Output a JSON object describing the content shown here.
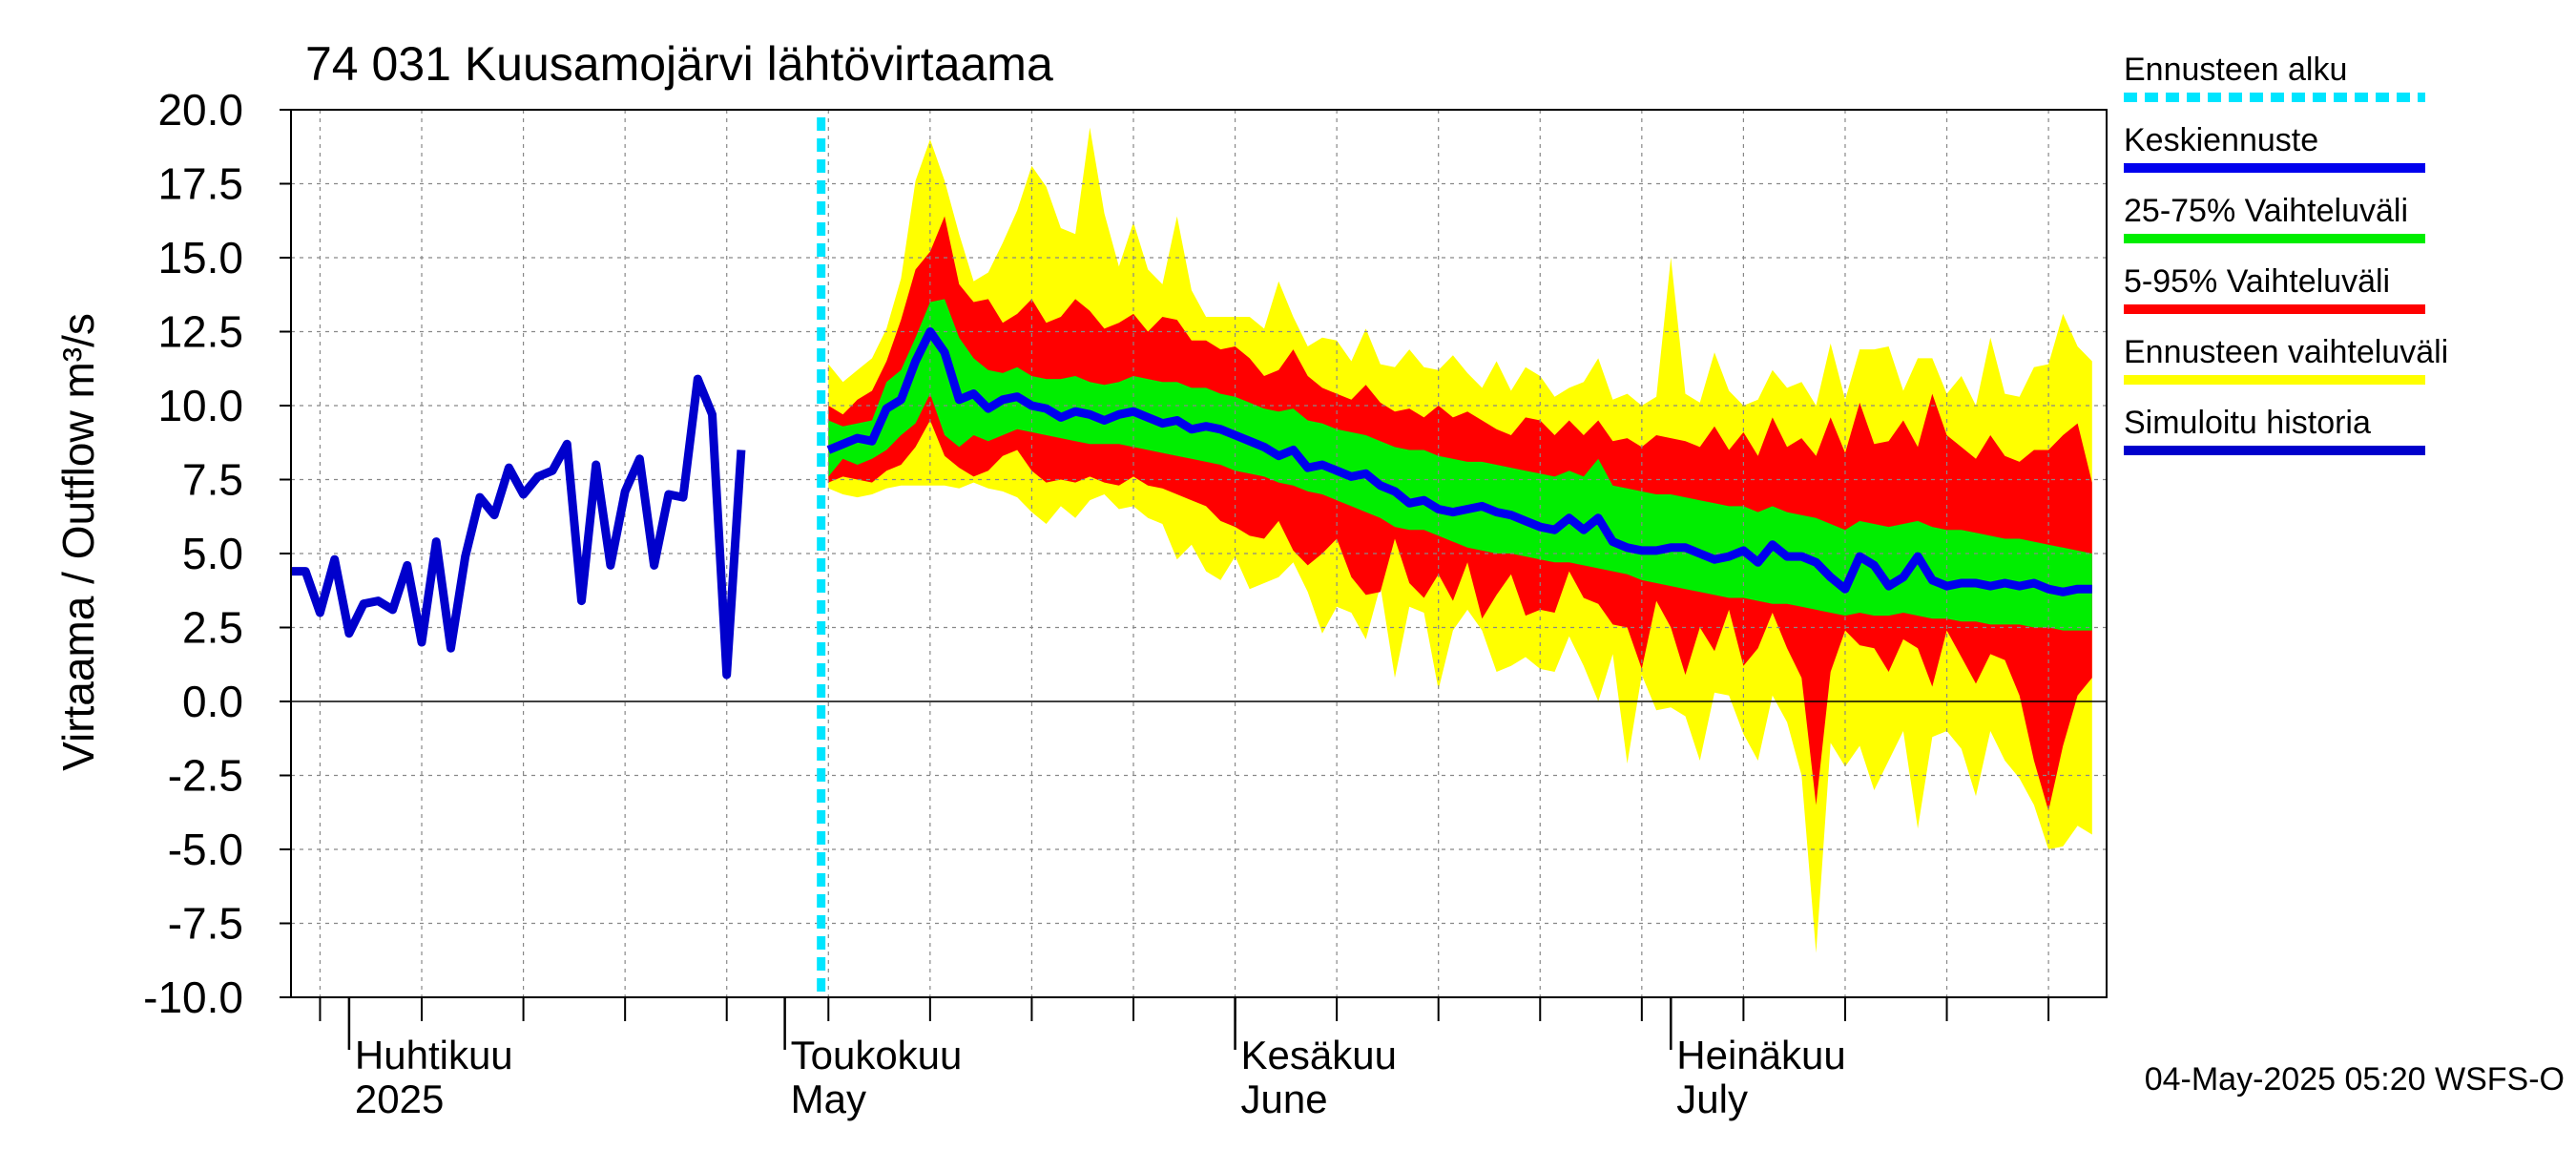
{
  "chart_data": {
    "type": "area",
    "title": "74 031 Kuusamojärvi lähtövirtaama",
    "ylabel": "Virtaama / Outflow    m³/s",
    "ylim": [
      -10,
      20
    ],
    "yticks": [
      "20.0",
      "17.5",
      "15.0",
      "12.5",
      "10.0",
      "7.5",
      "5.0",
      "2.5",
      "0.0",
      "-2.5",
      "-5.0",
      "-7.5",
      "-10.0"
    ],
    "xlim": [
      "2025-03-28",
      "2025-07-31"
    ],
    "x_month_labels": [
      {
        "date": "2025-04-01",
        "line1": "Huhtikuu",
        "line2": "2025"
      },
      {
        "date": "2025-05-01",
        "line1": "Toukokuu",
        "line2": "May"
      },
      {
        "date": "2025-06-01",
        "line1": "Kesäkuu",
        "line2": "June"
      },
      {
        "date": "2025-07-01",
        "line1": "Heinäkuu",
        "line2": "July"
      }
    ],
    "forecast_start": "2025-05-04",
    "footer": "04-May-2025 05:20 WSFS-O",
    "legend": [
      {
        "label": "Ennusteen alku",
        "color": "#00e5ff",
        "style": "dotted"
      },
      {
        "label": "Keskiennuste",
        "color": "#0000ee",
        "style": "solid"
      },
      {
        "label": "25-75% Vaihteluväli",
        "color": "#00ee00",
        "style": "solid"
      },
      {
        "label": "5-95% Vaihteluväli",
        "color": "#ff0000",
        "style": "solid"
      },
      {
        "label": "Ennusteen vaihteluväli",
        "color": "#ffff00",
        "style": "solid"
      },
      {
        "label": "Simuloitu historia",
        "color": "#0000cc",
        "style": "solid"
      }
    ],
    "colors": {
      "yellow": "#ffff00",
      "red": "#ff0000",
      "green": "#00ee00",
      "blue": "#0000ee",
      "cyan": "#00e5ff"
    },
    "history": {
      "start": "2025-03-28",
      "values": [
        4.4,
        4.4,
        3.0,
        4.8,
        2.3,
        3.3,
        3.4,
        3.1,
        4.6,
        2.0,
        5.4,
        1.8,
        4.9,
        6.9,
        6.3,
        7.9,
        7.0,
        7.6,
        7.8,
        8.7,
        3.4,
        8.0,
        4.6,
        7.1,
        8.2,
        4.6,
        7.0,
        6.9,
        10.9,
        9.7,
        0.9,
        8.5
      ]
    },
    "forecast": {
      "start": "2025-05-04",
      "median": [
        8.5,
        8.7,
        8.9,
        8.8,
        9.9,
        10.2,
        11.5,
        12.5,
        11.8,
        10.2,
        10.4,
        9.9,
        10.2,
        10.3,
        10.0,
        9.9,
        9.6,
        9.8,
        9.7,
        9.5,
        9.7,
        9.8,
        9.6,
        9.4,
        9.5,
        9.2,
        9.3,
        9.2,
        9.0,
        8.8,
        8.6,
        8.3,
        8.5,
        7.9,
        8.0,
        7.8,
        7.6,
        7.7,
        7.3,
        7.1,
        6.7,
        6.8,
        6.5,
        6.4,
        6.5,
        6.6,
        6.4,
        6.3,
        6.1,
        5.9,
        5.8,
        6.2,
        5.8,
        6.2,
        5.4,
        5.2,
        5.1,
        5.1,
        5.2,
        5.2,
        5.0,
        4.8,
        4.9,
        5.1,
        4.7,
        5.3,
        4.9,
        4.9,
        4.7,
        4.2,
        3.8,
        4.9,
        4.6,
        3.9,
        4.2,
        4.9,
        4.1,
        3.9,
        4.0,
        4.0,
        3.9,
        4.0,
        3.9,
        4.0,
        3.8,
        3.7,
        3.8,
        3.8
      ],
      "p25": [
        7.6,
        8.2,
        8.0,
        8.2,
        8.5,
        9.0,
        9.4,
        10.4,
        9.0,
        8.6,
        9.0,
        8.8,
        9.0,
        9.2,
        9.1,
        9.0,
        8.9,
        8.8,
        8.7,
        8.7,
        8.7,
        8.6,
        8.5,
        8.4,
        8.3,
        8.2,
        8.1,
        8.0,
        7.8,
        7.7,
        7.6,
        7.4,
        7.3,
        7.1,
        7.0,
        6.8,
        6.6,
        6.4,
        6.2,
        5.9,
        5.8,
        5.8,
        5.6,
        5.4,
        5.2,
        5.1,
        5.0,
        5.0,
        4.9,
        4.8,
        4.7,
        4.7,
        4.6,
        4.5,
        4.4,
        4.3,
        4.1,
        4.0,
        3.9,
        3.8,
        3.7,
        3.6,
        3.5,
        3.5,
        3.4,
        3.3,
        3.3,
        3.2,
        3.1,
        3.0,
        2.9,
        3.0,
        2.9,
        2.9,
        3.0,
        2.9,
        2.8,
        2.8,
        2.7,
        2.7,
        2.6,
        2.6,
        2.6,
        2.5,
        2.5,
        2.4,
        2.4,
        2.4
      ],
      "p75": [
        9.5,
        9.3,
        9.4,
        9.5,
        10.8,
        11.2,
        12.3,
        13.5,
        13.6,
        12.3,
        11.6,
        11.2,
        11.1,
        11.3,
        11.0,
        10.9,
        10.9,
        11.0,
        10.8,
        10.7,
        10.8,
        11.0,
        10.9,
        10.8,
        10.8,
        10.6,
        10.6,
        10.4,
        10.3,
        10.1,
        9.9,
        9.8,
        9.9,
        9.5,
        9.4,
        9.2,
        9.1,
        9.0,
        8.8,
        8.6,
        8.5,
        8.5,
        8.3,
        8.2,
        8.1,
        8.1,
        8.0,
        7.9,
        7.8,
        7.7,
        7.6,
        7.8,
        7.6,
        8.2,
        7.3,
        7.2,
        7.1,
        7.0,
        7.0,
        6.9,
        6.8,
        6.7,
        6.6,
        6.6,
        6.4,
        6.6,
        6.4,
        6.3,
        6.2,
        6.0,
        5.8,
        6.1,
        6.0,
        5.9,
        6.0,
        6.1,
        5.9,
        5.8,
        5.8,
        5.7,
        5.6,
        5.5,
        5.5,
        5.4,
        5.3,
        5.2,
        5.1,
        5.0
      ],
      "p05": [
        7.4,
        7.6,
        7.5,
        7.4,
        7.8,
        8.0,
        8.6,
        9.5,
        8.3,
        7.9,
        7.6,
        7.8,
        8.3,
        8.5,
        7.8,
        7.4,
        7.5,
        7.4,
        7.6,
        7.4,
        7.3,
        7.6,
        7.3,
        7.2,
        7.0,
        6.8,
        6.6,
        6.1,
        5.9,
        5.6,
        5.5,
        6.1,
        5.1,
        4.6,
        5.0,
        5.5,
        4.2,
        3.6,
        3.7,
        5.5,
        4.0,
        3.5,
        4.3,
        3.4,
        4.7,
        2.8,
        3.6,
        4.3,
        2.9,
        3.1,
        3.0,
        4.4,
        3.5,
        3.3,
        2.6,
        2.5,
        1.1,
        3.4,
        2.5,
        0.9,
        2.5,
        1.7,
        3.1,
        1.2,
        1.8,
        3.0,
        1.8,
        0.8,
        -3.5,
        1.0,
        2.4,
        1.9,
        1.8,
        1.0,
        2.1,
        1.8,
        0.5,
        2.4,
        1.5,
        0.6,
        1.6,
        1.4,
        0.2,
        -2.0,
        -3.7,
        -1.5,
        0.2,
        0.8
      ],
      "p95": [
        10.0,
        9.7,
        10.2,
        10.5,
        11.5,
        12.9,
        14.6,
        15.2,
        16.4,
        14.1,
        13.5,
        13.6,
        12.8,
        13.1,
        13.6,
        12.8,
        13.0,
        13.6,
        13.2,
        12.6,
        12.8,
        13.1,
        12.5,
        13.0,
        12.9,
        12.2,
        12.2,
        11.9,
        12.0,
        11.6,
        11.0,
        11.2,
        11.9,
        11.0,
        10.6,
        10.4,
        10.2,
        10.7,
        10.1,
        9.8,
        9.9,
        9.6,
        10.0,
        9.6,
        9.8,
        9.5,
        9.2,
        9.0,
        9.6,
        9.5,
        9.0,
        9.5,
        9.0,
        9.5,
        8.8,
        8.9,
        8.6,
        9.0,
        8.9,
        8.8,
        8.6,
        9.3,
        8.5,
        9.1,
        8.3,
        9.6,
        8.6,
        8.9,
        8.3,
        9.6,
        8.4,
        10.1,
        8.7,
        8.8,
        9.5,
        8.6,
        10.4,
        9.0,
        8.6,
        8.2,
        9.0,
        8.3,
        8.1,
        8.5,
        8.5,
        9.0,
        9.4,
        7.4
      ],
      "min": [
        7.2,
        7.0,
        6.9,
        7.0,
        7.2,
        7.3,
        7.3,
        7.3,
        7.3,
        7.2,
        7.4,
        7.2,
        7.1,
        6.9,
        6.4,
        6.0,
        6.6,
        6.2,
        6.8,
        7.0,
        6.5,
        6.6,
        6.2,
        6.0,
        4.8,
        5.3,
        4.4,
        4.1,
        4.9,
        3.8,
        4.0,
        4.2,
        4.7,
        3.7,
        2.3,
        3.2,
        3.0,
        2.1,
        3.9,
        0.8,
        3.2,
        3.0,
        0.4,
        2.4,
        3.1,
        2.4,
        1.0,
        1.2,
        1.5,
        1.1,
        1.0,
        2.2,
        1.2,
        0.0,
        1.6,
        -2.1,
        0.9,
        -0.3,
        -0.2,
        -0.5,
        -2.0,
        0.3,
        0.2,
        -1.1,
        -2.0,
        0.2,
        -0.7,
        -2.5,
        -8.5,
        -1.4,
        -2.2,
        -1.5,
        -3.0,
        -2.0,
        -1.0,
        -4.3,
        -1.2,
        -1.0,
        -1.6,
        -3.2,
        -1.0,
        -2.0,
        -2.6,
        -3.5,
        -5.0,
        -4.9,
        -4.2,
        -4.5
      ],
      "max": [
        11.4,
        10.8,
        11.2,
        11.6,
        12.6,
        14.3,
        17.6,
        19.0,
        17.6,
        15.8,
        14.2,
        14.5,
        15.5,
        16.6,
        18.1,
        17.4,
        16.0,
        15.8,
        19.4,
        16.5,
        14.7,
        16.2,
        14.6,
        14.1,
        16.4,
        13.9,
        13.0,
        13.0,
        13.0,
        13.0,
        12.6,
        14.2,
        13.0,
        12.0,
        12.3,
        12.2,
        11.5,
        12.6,
        11.4,
        11.3,
        11.9,
        11.3,
        11.2,
        11.7,
        11.1,
        10.6,
        11.5,
        10.5,
        11.3,
        11.0,
        10.3,
        10.6,
        10.8,
        11.6,
        10.2,
        10.4,
        10.0,
        10.3,
        15.0,
        10.4,
        10.1,
        11.8,
        10.5,
        10.0,
        10.2,
        11.2,
        10.6,
        10.8,
        10.0,
        12.1,
        10.2,
        11.9,
        11.9,
        12.0,
        10.5,
        11.6,
        11.6,
        10.4,
        11.0,
        10.0,
        12.3,
        10.4,
        10.3,
        11.3,
        11.4,
        13.1,
        12.0,
        11.5
      ]
    }
  }
}
